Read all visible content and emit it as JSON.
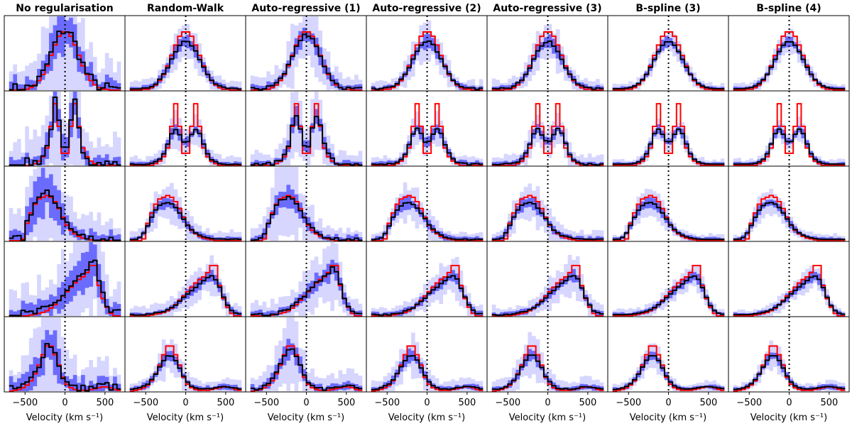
{
  "chart_data": {
    "type": "line",
    "subtype": "step-grid",
    "xlabel": "Velocity (km s⁻¹)",
    "xlim": [
      -760,
      750
    ],
    "xticks": [
      -500,
      0,
      500
    ],
    "xtick_labels": [
      "−500",
      "0",
      "500"
    ],
    "reference_line_x": 0,
    "bin_centers": [
      -675,
      -625,
      -575,
      -525,
      -475,
      -425,
      -375,
      -325,
      -275,
      -225,
      -175,
      -125,
      -75,
      -25,
      25,
      75,
      125,
      175,
      225,
      275,
      325,
      375,
      425,
      475,
      525,
      575,
      625,
      675
    ],
    "columns": [
      {
        "title": "No regularisation",
        "smooth": 0,
        "scale": 1.0,
        "noise": 0.1,
        "band1": 0.14,
        "band2": 0.45
      },
      {
        "title": "Random-Walk",
        "smooth": 2,
        "scale": 0.85,
        "noise": 0.01,
        "band1": 0.05,
        "band2": 0.15
      },
      {
        "title": "Auto-regressive (1)",
        "smooth": 1,
        "scale": 0.95,
        "noise": 0.03,
        "band1": 0.07,
        "band2": 0.25
      },
      {
        "title": "Auto-regressive (2)",
        "smooth": 2,
        "scale": 0.85,
        "noise": 0.015,
        "band1": 0.05,
        "band2": 0.15
      },
      {
        "title": "Auto-regressive (3)",
        "smooth": 2,
        "scale": 0.85,
        "noise": 0.015,
        "band1": 0.05,
        "band2": 0.16
      },
      {
        "title": "B-spline (3)",
        "smooth": 2,
        "scale": 0.85,
        "noise": 0.0,
        "band1": 0.04,
        "band2": 0.1
      },
      {
        "title": "B-spline (4)",
        "smooth": 2,
        "scale": 0.85,
        "noise": 0.0,
        "band1": 0.04,
        "band2": 0.1
      }
    ],
    "series_legend": {
      "truth": "red step",
      "median": "black step",
      "band_1sigma": "dark blue",
      "band_2sigma": "light blue"
    },
    "truth_rows": [
      [
        0,
        0,
        0,
        0.01,
        0.01,
        0.03,
        0.06,
        0.11,
        0.18,
        0.28,
        0.4,
        0.52,
        0.62,
        0.67,
        0.67,
        0.62,
        0.52,
        0.4,
        0.28,
        0.18,
        0.11,
        0.06,
        0.03,
        0.01,
        0.01,
        0,
        0,
        0
      ],
      [
        0,
        0,
        0,
        0,
        0,
        0,
        0.02,
        0.05,
        0.1,
        0.2,
        0.45,
        0.71,
        0.45,
        0.14,
        0.14,
        0.45,
        0.71,
        0.45,
        0.2,
        0.1,
        0.05,
        0.02,
        0,
        0,
        0,
        0,
        0,
        0
      ],
      [
        0,
        0,
        0,
        0.02,
        0.2,
        0.32,
        0.42,
        0.48,
        0.5,
        0.52,
        0.5,
        0.45,
        0.37,
        0.27,
        0.18,
        0.12,
        0.08,
        0.05,
        0.03,
        0.02,
        0.01,
        0,
        0,
        0,
        0,
        0,
        0,
        0
      ],
      [
        0,
        0,
        0,
        0,
        0,
        0.01,
        0.02,
        0.03,
        0.04,
        0.06,
        0.09,
        0.13,
        0.18,
        0.23,
        0.28,
        0.33,
        0.38,
        0.42,
        0.45,
        0.5,
        0.58,
        0.58,
        0.35,
        0.2,
        0.1,
        0.03,
        0,
        0
      ],
      [
        0,
        0.01,
        0.02,
        0.04,
        0.07,
        0.12,
        0.2,
        0.3,
        0.42,
        0.52,
        0.52,
        0.42,
        0.3,
        0.16,
        0.08,
        0.04,
        0.02,
        0.01,
        0.01,
        0.01,
        0.02,
        0.03,
        0.04,
        0.05,
        0.05,
        0.04,
        0.02,
        0.01
      ]
    ],
    "colors": {
      "truth": "#ff0000",
      "median": "#000000",
      "band1": "#6b6bff",
      "band2": "#d6d6ff",
      "axes": "#000000"
    }
  }
}
